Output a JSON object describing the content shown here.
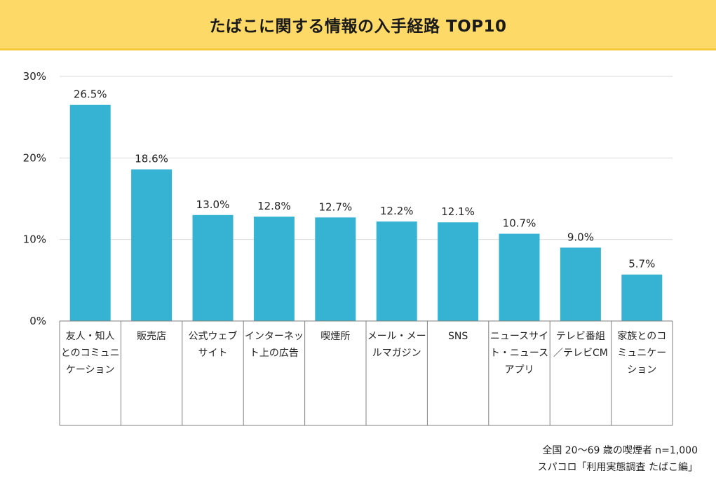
{
  "title": "たばこに関する情報の入手経路 TOP10",
  "chart_data": {
    "type": "bar",
    "title": "たばこに関する情報の入手経路 TOP10",
    "xlabel": "",
    "ylabel": "",
    "ylim": [
      0,
      30
    ],
    "yticks": [
      "0%",
      "10%",
      "20%",
      "30%"
    ],
    "ytick_values": [
      0,
      10,
      20,
      30
    ],
    "grid": true,
    "bar_color": "#36b3d3",
    "categories": [
      [
        "友人・知人",
        "とのコミュニ",
        "ケーション"
      ],
      [
        "販売店"
      ],
      [
        "公式ウェブ",
        "サイト"
      ],
      [
        "インターネッ",
        "ト上の広告"
      ],
      [
        "喫煙所"
      ],
      [
        "メール・メー",
        "ルマガジン"
      ],
      [
        "SNS"
      ],
      [
        "ニュースサイ",
        "ト・ニュース",
        "アプリ"
      ],
      [
        "テレビ番組",
        "／テレビCM"
      ],
      [
        "家族とのコ",
        "ミュニケー",
        "ション"
      ]
    ],
    "values": [
      26.5,
      18.6,
      13.0,
      12.8,
      12.7,
      12.2,
      12.1,
      10.7,
      9.0,
      5.7
    ],
    "value_labels": [
      "26.5%",
      "18.6%",
      "13.0%",
      "12.8%",
      "12.7%",
      "12.2%",
      "12.1%",
      "10.7%",
      "9.0%",
      "5.7%"
    ]
  },
  "footnotes": {
    "sample": "全国 20～69 歳の喫煙者 n=1,000",
    "source": "スパコロ「利用実態調査 たばこ編」"
  }
}
